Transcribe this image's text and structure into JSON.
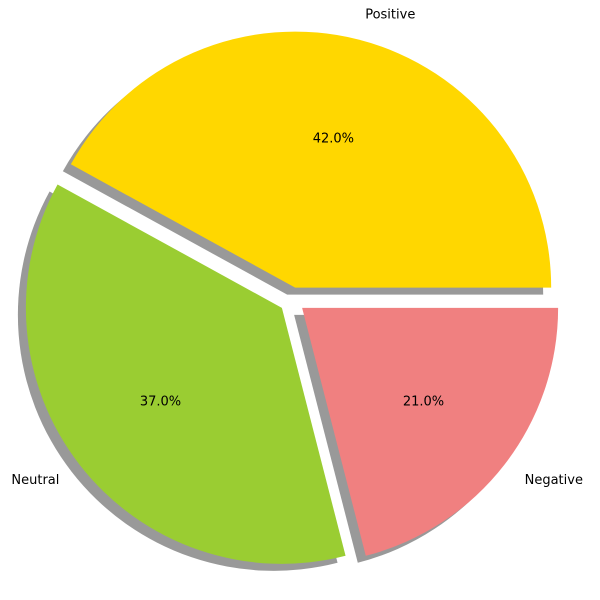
{
  "chart_data": {
    "type": "pie",
    "title": "",
    "categories": [
      "Positive",
      "Neutral",
      "Negative"
    ],
    "values": [
      42.0,
      37.0,
      21.0
    ],
    "percent_labels": [
      "42.0%",
      "37.0%",
      "21.0%"
    ],
    "colors": [
      "#FFD700",
      "#9ACD32",
      "#F08080"
    ],
    "explode": [
      0.05,
      0.05,
      0.05
    ],
    "start_angle_deg": 0,
    "counterclockwise": true,
    "shadow": true,
    "legend": "none"
  }
}
